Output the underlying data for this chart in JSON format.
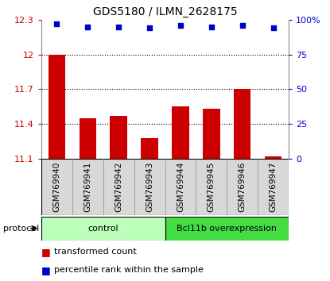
{
  "title": "GDS5180 / ILMN_2628175",
  "samples": [
    "GSM769940",
    "GSM769941",
    "GSM769942",
    "GSM769943",
    "GSM769944",
    "GSM769945",
    "GSM769946",
    "GSM769947"
  ],
  "bar_values": [
    12.0,
    11.45,
    11.47,
    11.28,
    11.55,
    11.53,
    11.7,
    11.12
  ],
  "ylim_left": [
    11.1,
    12.3
  ],
  "ylim_right": [
    0,
    100
  ],
  "yticks_left": [
    11.1,
    11.4,
    11.7,
    12.0,
    12.3
  ],
  "ytick_labels_left": [
    "11.1",
    "11.4",
    "11.7",
    "12",
    "12.3"
  ],
  "yticks_right": [
    0,
    25,
    50,
    75,
    100
  ],
  "ytick_labels_right": [
    "0",
    "25",
    "50",
    "75",
    "100%"
  ],
  "hlines": [
    12.0,
    11.7,
    11.4
  ],
  "bar_color": "#cc0000",
  "dot_color": "#0000cc",
  "control_label": "control",
  "overexpression_label": "Bcl11b overexpression",
  "control_indices": [
    0,
    1,
    2,
    3
  ],
  "overexpression_indices": [
    4,
    5,
    6,
    7
  ],
  "control_color": "#bbffbb",
  "overexpression_color": "#44dd44",
  "protocol_label": "protocol",
  "legend_bar_label": "transformed count",
  "legend_dot_label": "percentile rank within the sample",
  "bar_width": 0.55,
  "base_value": 11.1,
  "dot_y_data": [
    97,
    95,
    95,
    94,
    96,
    95,
    96,
    94
  ],
  "gray_box_color": "#d8d8d8",
  "separator_color": "#888888",
  "title_fontsize": 10,
  "tick_label_fontsize": 7.5,
  "axis_label_fontsize": 8,
  "legend_fontsize": 8
}
